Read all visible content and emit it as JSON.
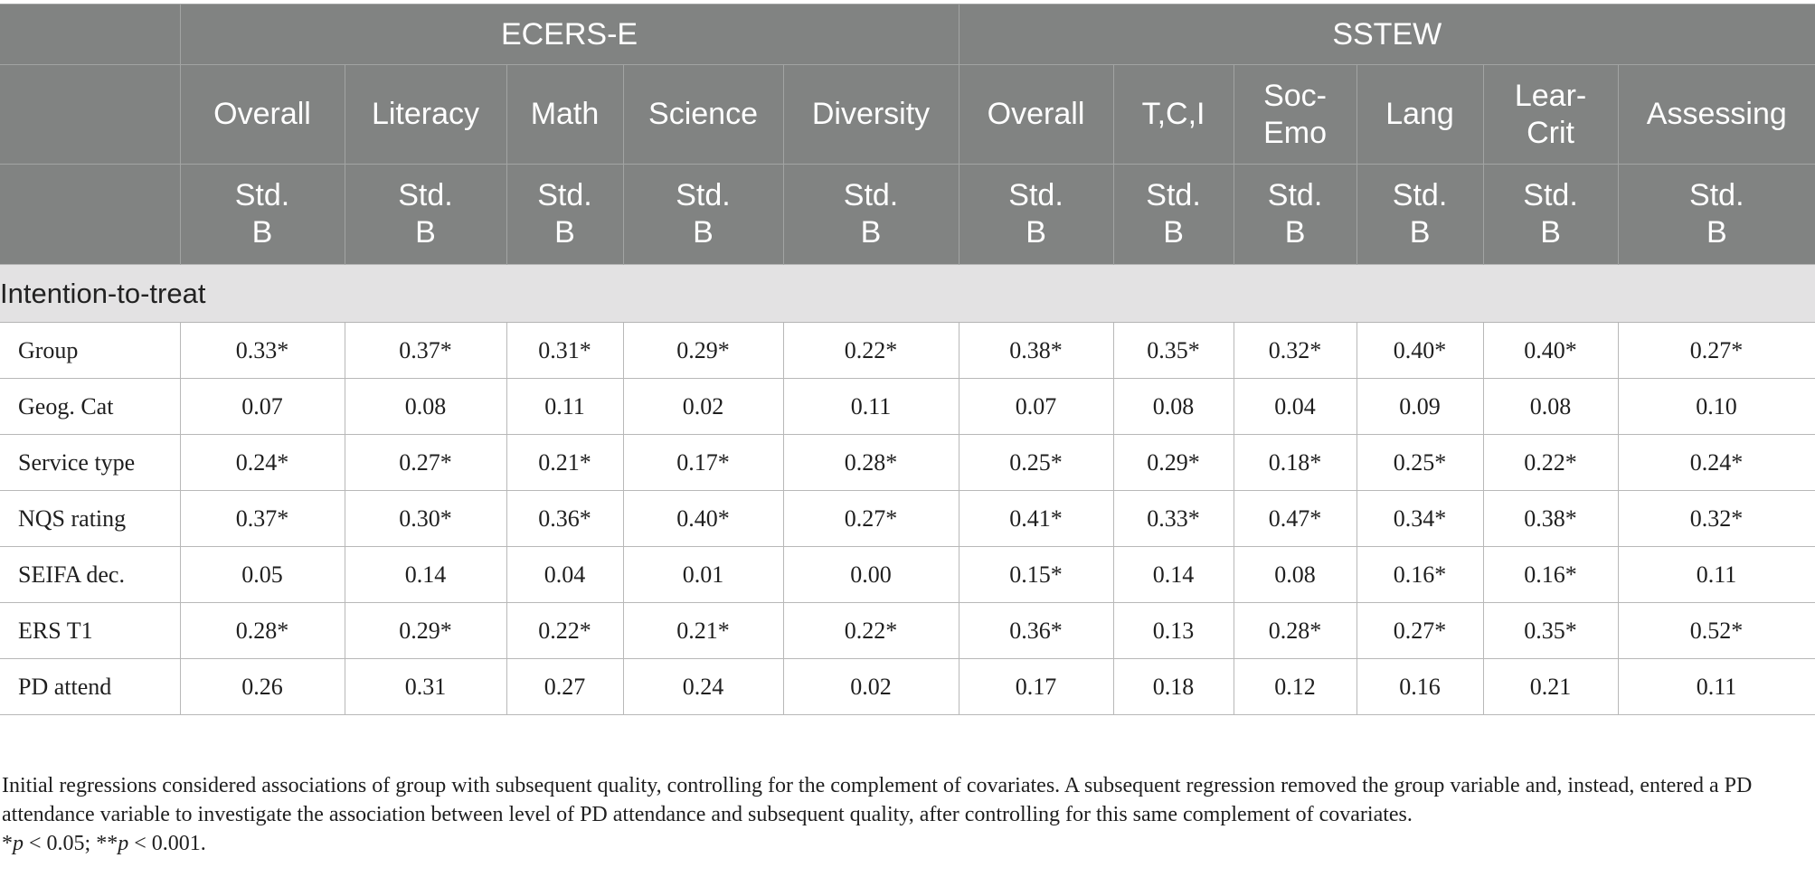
{
  "table": {
    "group_headers": [
      "ECERS-E",
      "SSTEW"
    ],
    "columns": [
      [
        "Overall"
      ],
      [
        "Literacy"
      ],
      [
        "Math"
      ],
      [
        "Science"
      ],
      [
        "Diversity"
      ],
      [
        "Overall"
      ],
      [
        "T,C,I"
      ],
      [
        "Soc-",
        "Emo"
      ],
      [
        "Lang"
      ],
      [
        "Lear-",
        "Crit"
      ],
      [
        "Assessing"
      ]
    ],
    "stat_label": [
      "Std.",
      "B"
    ],
    "section_label": "Intention-to-treat",
    "rows": [
      {
        "label": "Group",
        "values": [
          "0.33*",
          "0.37*",
          "0.31*",
          "0.29*",
          "0.22*",
          "0.38*",
          "0.35*",
          "0.32*",
          "0.40*",
          "0.40*",
          "0.27*"
        ]
      },
      {
        "label": "Geog. Cat",
        "values": [
          "0.07",
          "0.08",
          "0.11",
          "0.02",
          "0.11",
          "0.07",
          "0.08",
          "0.04",
          "0.09",
          "0.08",
          "0.10"
        ]
      },
      {
        "label": "Service type",
        "values": [
          "0.24*",
          "0.27*",
          "0.21*",
          "0.17*",
          "0.28*",
          "0.25*",
          "0.29*",
          "0.18*",
          "0.25*",
          "0.22*",
          "0.24*"
        ]
      },
      {
        "label": "NQS rating",
        "values": [
          "0.37*",
          "0.30*",
          "0.36*",
          "0.40*",
          "0.27*",
          "0.41*",
          "0.33*",
          "0.47*",
          "0.34*",
          "0.38*",
          "0.32*"
        ]
      },
      {
        "label": "SEIFA dec.",
        "values": [
          "0.05",
          "0.14",
          "0.04",
          "0.01",
          "0.00",
          "0.15*",
          "0.14",
          "0.08",
          "0.16*",
          "0.16*",
          "0.11"
        ]
      },
      {
        "label": "ERS T1",
        "values": [
          "0.28*",
          "0.29*",
          "0.22*",
          "0.21*",
          "0.22*",
          "0.36*",
          "0.13",
          "0.28*",
          "0.27*",
          "0.35*",
          "0.52*"
        ]
      },
      {
        "label": "PD attend",
        "values": [
          "0.26",
          "0.31",
          "0.27",
          "0.24",
          "0.02",
          "0.17",
          "0.18",
          "0.12",
          "0.16",
          "0.21",
          "0.11"
        ]
      }
    ]
  },
  "footnote": {
    "text": "Initial regressions considered associations of group with subsequent quality, controlling for the complement of covariates. A subsequent regression removed the group variable and, instead, entered a PD attendance variable to investigate the association between level of PD attendance and subsequent quality, after controlling for this same complement of covariates.",
    "sig_1_star": "*",
    "sig_1_p": "p",
    "sig_1_rest": " < 0.05; ",
    "sig_2_star": "**",
    "sig_2_p": "p",
    "sig_2_rest": " < 0.001."
  }
}
